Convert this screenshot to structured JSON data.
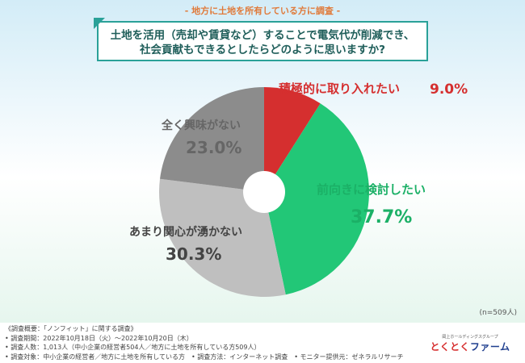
{
  "header": "- 地方に土地を所有している方に調査 -",
  "question": {
    "line1": "土地を活用（売却や賃貸など）することで電気代が削減でき、",
    "line2": "社会貢献もできるとしたらどのように思いますか?"
  },
  "chart_data": {
    "type": "pie",
    "title": "土地を活用（売却や賃貸など）することで電気代が削減でき、社会貢献もできるとしたらどのように思いますか?",
    "unit": "%",
    "slices": [
      {
        "label": "積極的に取り入れたい",
        "value": 9.0,
        "display": "9.0%",
        "color": "#d52f2f",
        "text_color": "#d52f2f"
      },
      {
        "label": "前向きに検討したい",
        "value": 37.7,
        "display": "37.7%",
        "color": "#22c777",
        "text_color": "#1bb066"
      },
      {
        "label": "あまり関心が湧かない",
        "value": 30.3,
        "display": "30.3%",
        "color": "#bfbfbf",
        "text_color": "#444444"
      },
      {
        "label": "全く興味がない",
        "value": 23.0,
        "display": "23.0%",
        "color": "#8c8c8c",
        "text_color": "#666666"
      }
    ],
    "sample": "(n=509人)"
  },
  "footer": {
    "lines": [
      "《調査概要：「ノンフィット」に関する調査》",
      "• 調査期間：2022年10月18日（火）～2022年10月20日（木）",
      "• 調査人数：1,013人（中小企業の経営者504人／地方に土地を所有している方509人）",
      "• 調査対象：中小企業の経営者／地方に土地を所有している方　• 調査方法：インターネット調査　• モニター提供元：ゼネラルリサーチ"
    ]
  },
  "logo": {
    "top": "岡上ホールディングスグループ",
    "main_red": "とくとく",
    "main_blue": "ファーム"
  }
}
